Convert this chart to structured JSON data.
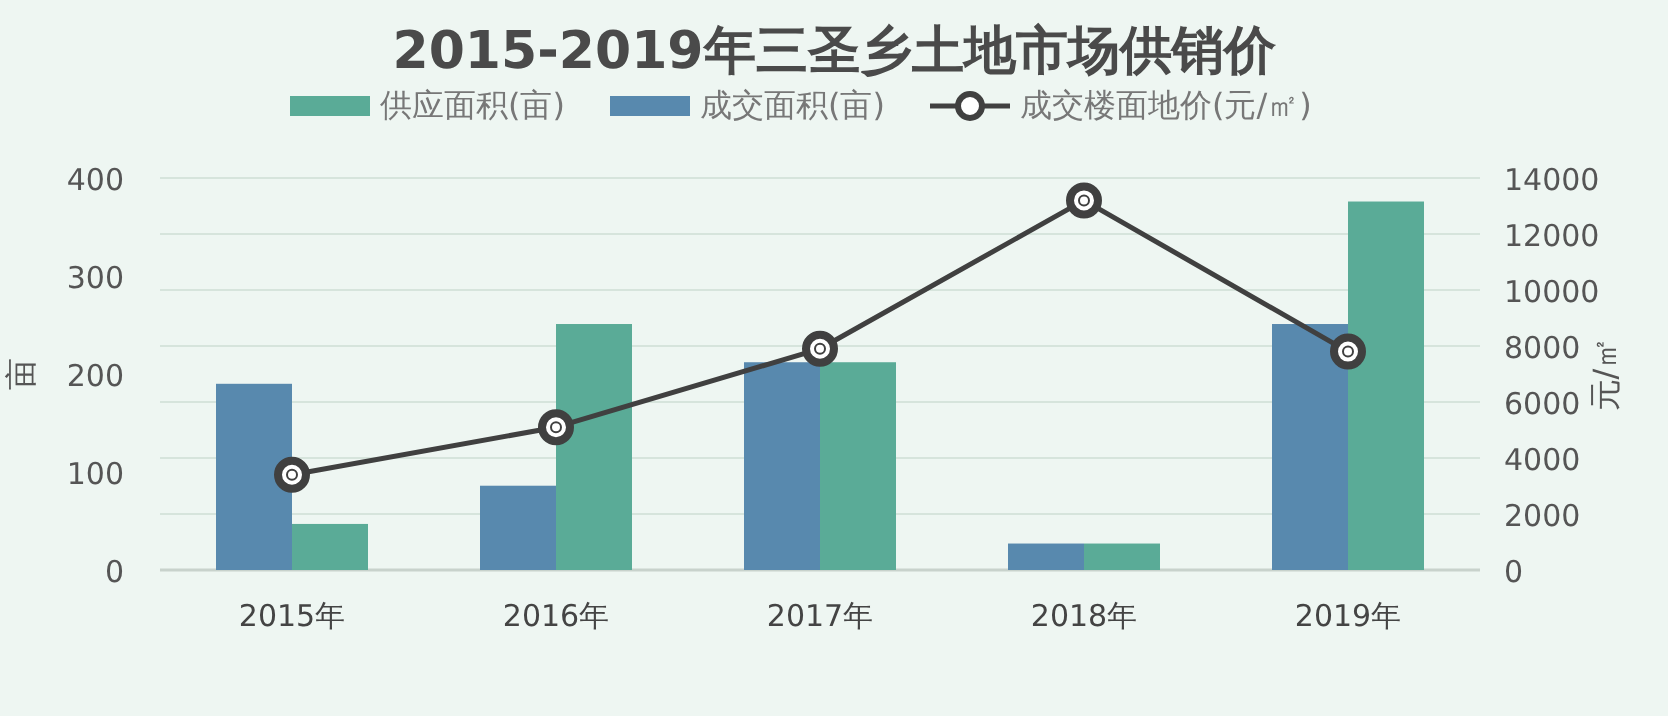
{
  "chart_data": {
    "type": "bar",
    "title": "2015-2019年三圣乡土地市场供销价",
    "ylabel": "亩",
    "y2label": "元/㎡",
    "categories": [
      "2015年",
      "2016年",
      "2017年",
      "2018年",
      "2019年"
    ],
    "series": [
      {
        "name": "供应面积(亩)",
        "color": "#5aab97",
        "values": [
          47,
          251,
          212,
          27,
          376
        ]
      },
      {
        "name": "成交面积(亩)",
        "color": "#5889ae",
        "values": [
          190,
          86,
          212,
          27,
          251
        ]
      },
      {
        "name": "成交楼面地价(元/㎡)",
        "type": "line",
        "axis": "y2",
        "color": "#404040",
        "marker": "circle",
        "values": [
          3400,
          5100,
          7900,
          13200,
          7800
        ]
      }
    ],
    "ylim": [
      0,
      400
    ],
    "yticks": [
      0,
      100,
      200,
      300,
      400
    ],
    "y2lim": [
      0,
      14000
    ],
    "y2ticks": [
      0,
      2000,
      4000,
      6000,
      8000,
      10000,
      12000,
      14000
    ],
    "grid": "y",
    "legend": "top"
  }
}
